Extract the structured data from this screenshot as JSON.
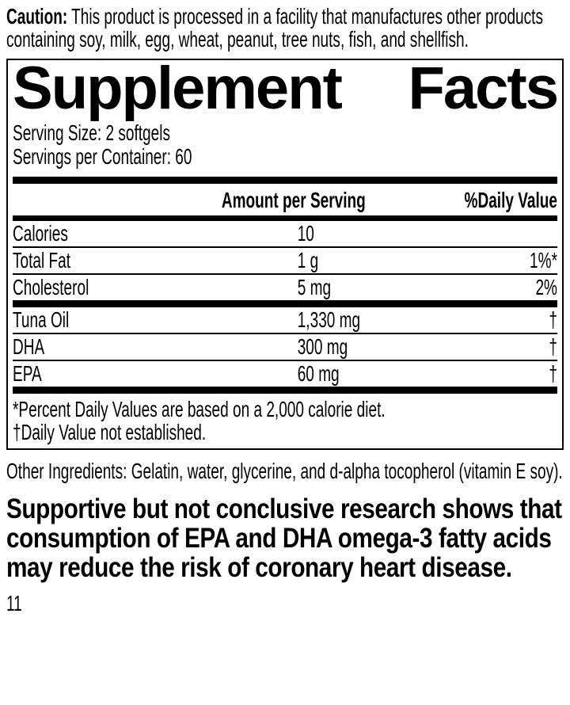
{
  "colors": {
    "text": "#000000",
    "background": "#ffffff"
  },
  "caution": {
    "label": "Caution:",
    "text": "This product is processed in a facility that manufactures other products containing soy, milk, egg, wheat, peanut, tree nuts, fish, and shellfish."
  },
  "panel": {
    "title_words": [
      "Supplement",
      "Facts"
    ],
    "serving_size": "Serving Size: 2 softgels",
    "servings_per_container": "Servings per Container: 60",
    "columns": {
      "amount": "Amount per Serving",
      "daily_value": "%Daily Value"
    },
    "rows": [
      {
        "name": "Calories",
        "amount": "10",
        "dv": ""
      },
      {
        "name": "Total Fat",
        "amount": "1 g",
        "dv": "1%*"
      },
      {
        "name": "Cholesterol",
        "amount": "5 mg",
        "dv": "2%"
      },
      {
        "name": "Tuna Oil",
        "amount": "1,330 mg",
        "dv": "†"
      },
      {
        "name": "DHA",
        "amount": "300 mg",
        "dv": "†"
      },
      {
        "name": "EPA",
        "amount": "60 mg",
        "dv": "†"
      }
    ],
    "footnotes": [
      "*Percent Daily Values are based on a 2,000 calorie diet.",
      "†Daily Value not established."
    ]
  },
  "other_ingredients": "Other Ingredients: Gelatin, water, glycerine, and d-alpha tocopherol (vitamin E soy).",
  "claim": "Supportive but not conclusive research shows that consumption of EPA and DHA omega-3 fatty acids may reduce the risk of coronary heart disease.",
  "page_number": "11"
}
